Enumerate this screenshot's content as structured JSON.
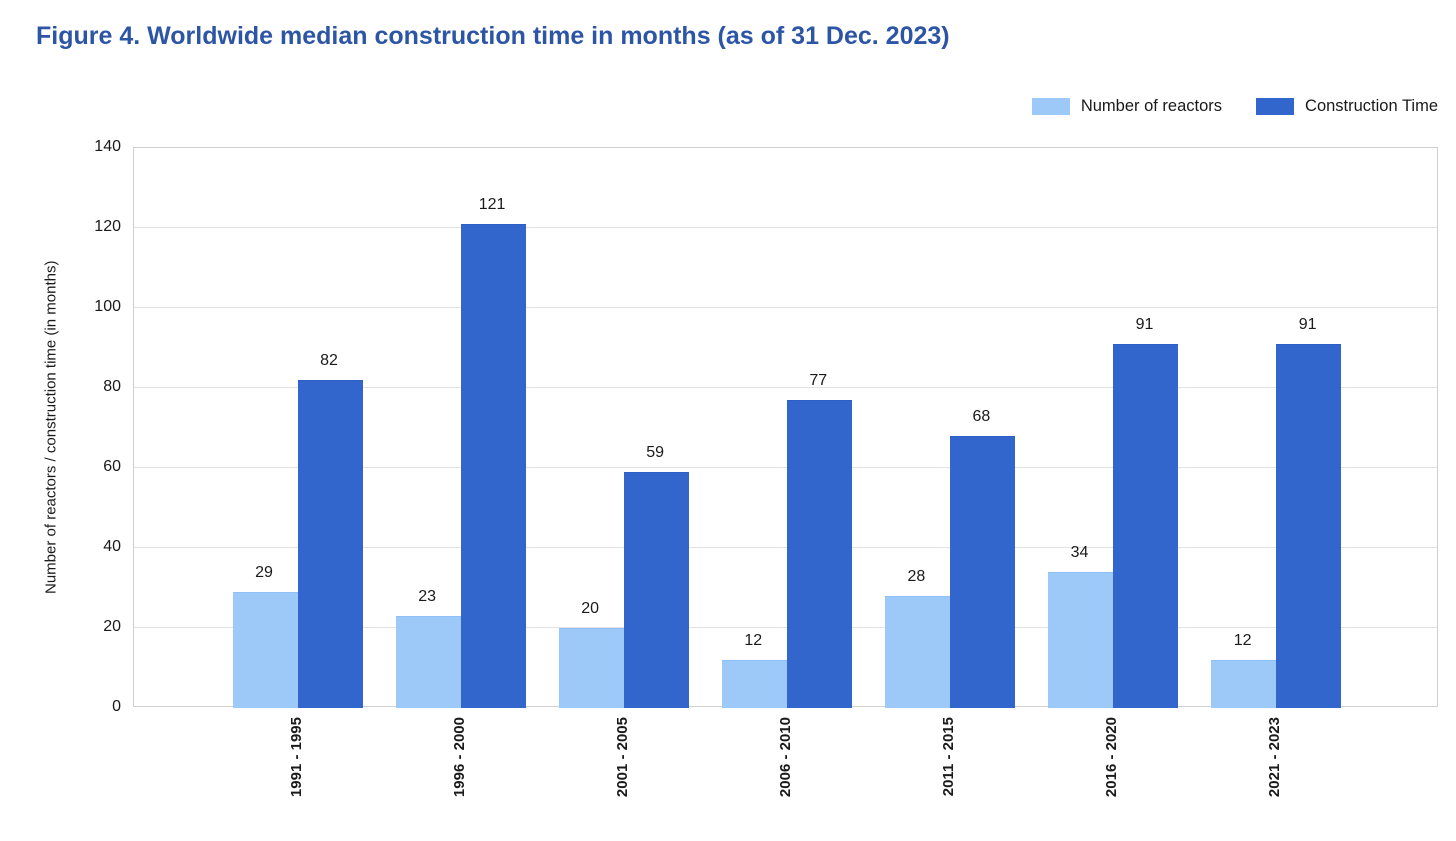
{
  "title": "Figure 4. Worldwide median construction time in months (as of 31 Dec. 2023)",
  "colors": {
    "title": "#2d55a5",
    "series_light": "#9dc9f8",
    "series_light_edge": "#8ec0f5",
    "series_dark": "#3366cc",
    "series_dark_edge": "#2e5ec4",
    "grid": "#e2e2e2",
    "plot_border": "#d0d0d0",
    "text": "#1a1a1a"
  },
  "legend": {
    "position": "top-right",
    "items": [
      {
        "label": "Number of reactors",
        "color": "#9dc9f8"
      },
      {
        "label": "Construction Time",
        "color": "#3366cc"
      }
    ]
  },
  "chart_data": {
    "type": "bar",
    "title": "Figure 4. Worldwide median construction time in months (as of 31 Dec. 2023)",
    "categories": [
      "1991 - 1995",
      "1996 - 2000",
      "2001 - 2005",
      "2006 - 2010",
      "2011 - 2015",
      "2016 - 2020",
      "2021 - 2023"
    ],
    "series": [
      {
        "name": "Number of reactors",
        "color": "#9dc9f8",
        "values": [
          29,
          23,
          20,
          12,
          28,
          34,
          12
        ]
      },
      {
        "name": "Construction Time",
        "color": "#3366cc",
        "values": [
          82,
          121,
          59,
          77,
          68,
          91,
          91
        ]
      }
    ],
    "xlabel": "",
    "ylabel": "Number of reactors / construction time (in months)",
    "ylim": [
      0,
      140
    ],
    "yticks": [
      0,
      20,
      40,
      60,
      80,
      100,
      120,
      140
    ],
    "grid": true,
    "bar_value_labels": true,
    "legend_position": "top-right"
  }
}
